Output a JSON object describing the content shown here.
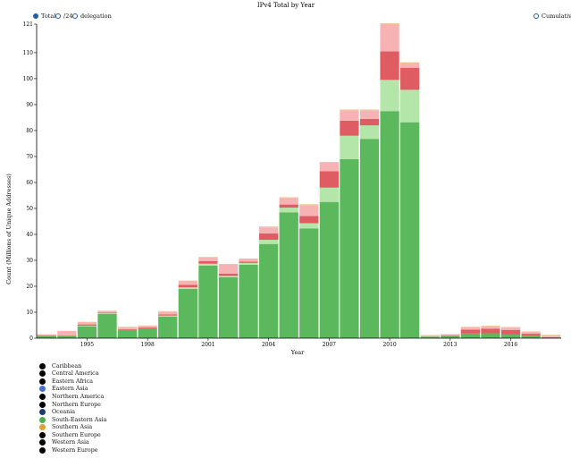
{
  "chart_data": {
    "type": "bar",
    "title": "IPv4 Total by Year",
    "xlabel": "Year",
    "ylabel": "Count (Millions of Unique Addresses)",
    "ylim": [
      0,
      121
    ],
    "yticks": [
      0,
      10,
      20,
      30,
      40,
      50,
      60,
      70,
      80,
      90,
      100,
      110,
      121
    ],
    "x_tick_labels": [
      "1995",
      "1998",
      "2001",
      "2004",
      "2007",
      "2010",
      "2013",
      "2016"
    ],
    "categories": [
      "1993",
      "1994",
      "1995",
      "1996",
      "1997",
      "1998",
      "1999",
      "2000",
      "2001",
      "2002",
      "2003",
      "2004",
      "2005",
      "2006",
      "2007",
      "2008",
      "2009",
      "2010",
      "2011",
      "2012",
      "2013",
      "2014",
      "2015",
      "2016",
      "2017",
      "2018"
    ],
    "series": [
      {
        "name": "",
        "color": "#5cb85c",
        "values": [
          1.0,
          1.0,
          4.5,
          9.3,
          3.2,
          3.8,
          8.3,
          19.0,
          28.0,
          23.5,
          28.3,
          36.3,
          48.5,
          42.3,
          52.5,
          69.0,
          76.8,
          87.5,
          83.2,
          0.6,
          1.0,
          1.8,
          1.9,
          1.4,
          1.0,
          0.4
        ]
      },
      {
        "name": "",
        "color": "#b3e6a8",
        "values": [
          0.0,
          0.0,
          0.3,
          0.3,
          0.0,
          0.0,
          0.4,
          0.6,
          0.7,
          0.5,
          0.7,
          1.6,
          1.8,
          2.0,
          5.5,
          9.0,
          5.2,
          12.0,
          12.5,
          0.0,
          0.0,
          0.0,
          0.0,
          0.0,
          0.0,
          0.0
        ]
      },
      {
        "name": "",
        "color": "#e05c63",
        "values": [
          0.0,
          0.0,
          0.5,
          0.3,
          0.3,
          0.3,
          0.5,
          1.0,
          1.0,
          0.9,
          0.5,
          2.5,
          1.2,
          2.8,
          6.3,
          5.8,
          2.5,
          11.0,
          8.5,
          0.0,
          0.0,
          1.5,
          1.8,
          1.8,
          0.7,
          0.0
        ]
      },
      {
        "name": "",
        "color": "#f7b2b4",
        "values": [
          0.5,
          1.8,
          0.7,
          0.4,
          0.7,
          0.6,
          1.0,
          1.3,
          1.3,
          3.4,
          1.0,
          2.3,
          2.5,
          4.2,
          3.3,
          4.0,
          3.3,
          10.5,
          1.3,
          0.3,
          0.4,
          0.9,
          0.9,
          0.9,
          0.6,
          0.6
        ]
      },
      {
        "name": "",
        "color": "#f0c08a",
        "values": [
          0.0,
          0.0,
          0.3,
          0.3,
          0.2,
          0.2,
          0.2,
          0.3,
          0.3,
          0.3,
          0.2,
          0.3,
          0.3,
          0.3,
          0.3,
          0.3,
          0.3,
          0.3,
          0.8,
          0.3,
          0.2,
          0.2,
          0.2,
          0.2,
          0.3,
          0.3
        ]
      }
    ],
    "grid": false
  },
  "controls": {
    "total": "Total",
    "slash24": "/24",
    "delegation": "delegation",
    "cumulative": "Cumulative"
  },
  "legend": [
    {
      "label": "Caribbean",
      "color": "#000000"
    },
    {
      "label": "Central America",
      "color": "#000000"
    },
    {
      "label": "Eastern Africa",
      "color": "#000000"
    },
    {
      "label": "Eastern Asia",
      "color": "#4a6fd4"
    },
    {
      "label": "Northern America",
      "color": "#000000"
    },
    {
      "label": "Northern Europe",
      "color": "#000000"
    },
    {
      "label": "Oceania",
      "color": "#1f3b6e"
    },
    {
      "label": "South-Eastern Asia",
      "color": "#4caf50"
    },
    {
      "label": "Southern Asia",
      "color": "#e0a030"
    },
    {
      "label": "Southern Europe",
      "color": "#000000"
    },
    {
      "label": "Western Asia",
      "color": "#000000"
    },
    {
      "label": "Western Europe",
      "color": "#000000"
    }
  ]
}
